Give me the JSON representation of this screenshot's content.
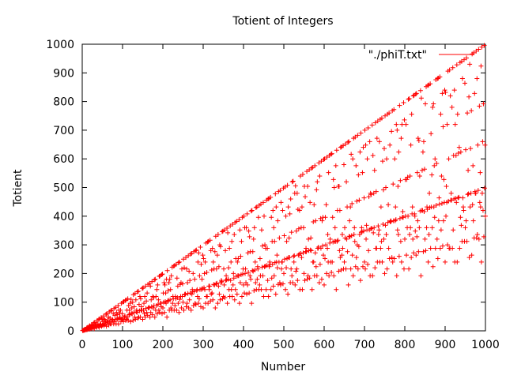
{
  "chart_data": {
    "type": "scatter",
    "title": "Totient of Integers",
    "xlabel": "Number",
    "ylabel": "Totient",
    "xlim": [
      0,
      1000
    ],
    "ylim": [
      0,
      1000
    ],
    "xticks": [
      0,
      100,
      200,
      300,
      400,
      500,
      600,
      700,
      800,
      900,
      1000
    ],
    "yticks": [
      0,
      100,
      200,
      300,
      400,
      500,
      600,
      700,
      800,
      900,
      1000
    ],
    "grid": false,
    "legend_position": "top-right",
    "marker": "plus",
    "series": [
      {
        "name": "\"./phiT.txt\"",
        "color": "#ff0000",
        "x_start": 1,
        "x_end": 1000,
        "value_rule": "Euler totient phi(n) for each integer n"
      }
    ]
  }
}
